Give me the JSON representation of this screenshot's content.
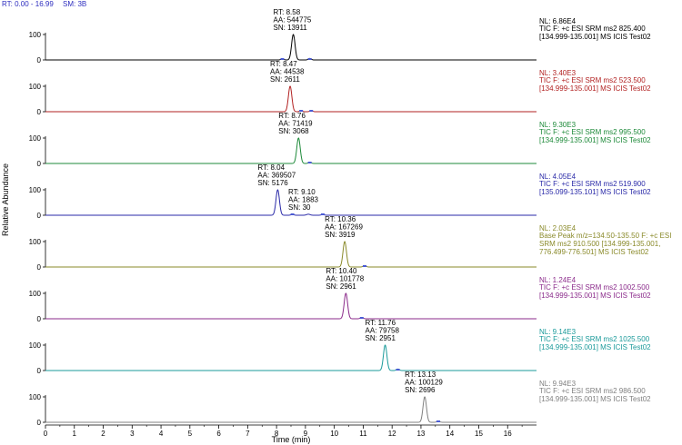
{
  "header": {
    "rt_range": "RT: 0.00 - 16.99",
    "sm": "SM: 3B"
  },
  "colors": {
    "axis": "#000000",
    "header": "#2d2dbf",
    "peak_marker": "#4a5bd4"
  },
  "chart_data": {
    "type": "line",
    "title": "",
    "xlabel": "Time (min)",
    "ylabel": "Relative Abundance",
    "xlim": [
      0,
      17
    ],
    "x_ticks": [
      0,
      1,
      2,
      3,
      4,
      5,
      6,
      7,
      8,
      9,
      10,
      11,
      12,
      13,
      14,
      15,
      16
    ],
    "x_tick_labels": [
      "0",
      "1",
      "2",
      "3",
      "4",
      "5",
      "6",
      "7",
      "8",
      "9",
      "10",
      "11",
      "12",
      "13",
      "14",
      "15",
      "16"
    ],
    "panel_y_ticks": [
      "0",
      "100"
    ],
    "panels": [
      {
        "color": "#000000",
        "nl": "NL: 6.86E4",
        "info": [
          "TIC F: +c ESI SRM ms2 825.400",
          "[134.999-135.001] MS ICIS Test02"
        ],
        "peaks": [
          {
            "rt": 8.58,
            "height": 100,
            "labels": [
              "RT: 8.58",
              "AA: 544775",
              "SN: 13911"
            ]
          }
        ],
        "minor": [
          {
            "rt": 8.2,
            "height": 4
          },
          {
            "rt": 9.15,
            "height": 6
          }
        ]
      },
      {
        "color": "#b22222",
        "nl": "NL: 3.40E3",
        "info": [
          "TIC F: +c ESI SRM ms2 523.500",
          "[134.999-135.001] MS ICIS Test02"
        ],
        "peaks": [
          {
            "rt": 8.47,
            "height": 100,
            "labels": [
              "RT: 8.47",
              "AA: 44538",
              "SN: 2611"
            ]
          }
        ],
        "minor": [
          {
            "rt": 8.85,
            "height": 5
          },
          {
            "rt": 9.2,
            "height": 4
          }
        ]
      },
      {
        "color": "#1e8a3a",
        "nl": "NL: 9.30E3",
        "info": [
          "TIC F: +c ESI SRM ms2 995.500",
          "[134.999-135.001] MS ICIS Test02"
        ],
        "peaks": [
          {
            "rt": 8.76,
            "height": 100,
            "labels": [
              "RT: 8.76",
              "AA: 71419",
              "SN: 3068"
            ]
          }
        ],
        "minor": [
          {
            "rt": 9.15,
            "height": 5
          }
        ]
      },
      {
        "color": "#2a2aa8",
        "nl": "NL: 4.05E4",
        "info": [
          "TIC F: +c ESI SRM ms2 519.900",
          "[135.099-135.101] MS ICIS Test02"
        ],
        "peaks": [
          {
            "rt": 8.04,
            "height": 100,
            "labels": [
              "RT: 8.04",
              "AA: 369507",
              "SN: 5176"
            ]
          },
          {
            "rt": 9.1,
            "height": 4,
            "labels": [
              "RT: 9.10",
              "AA: 1883",
              "SN: 30"
            ]
          }
        ],
        "minor": [
          {
            "rt": 8.55,
            "height": 3
          },
          {
            "rt": 9.6,
            "height": 3
          }
        ]
      },
      {
        "color": "#8a8a2a",
        "nl": "NL: 2.03E4",
        "info": [
          "Base Peak m/z=134.50-135.50 F: +c ESI",
          "SRM ms2 910.500 [134.999-135.001,",
          "776.499-776.501] MS ICIS Test02"
        ],
        "peaks": [
          {
            "rt": 10.36,
            "height": 100,
            "labels": [
              "RT: 10.36",
              "AA: 167269",
              "SN: 3919"
            ]
          }
        ],
        "minor": [
          {
            "rt": 11.05,
            "height": 6
          }
        ]
      },
      {
        "color": "#8b2b8b",
        "nl": "NL: 1.24E4",
        "info": [
          "TIC F: +c ESI SRM ms2 1002.500",
          "[134.999-135.001] MS ICIS Test02"
        ],
        "peaks": [
          {
            "rt": 10.4,
            "height": 100,
            "labels": [
              "RT: 10.40",
              "AA: 101778",
              "SN: 2961"
            ]
          }
        ],
        "minor": [
          {
            "rt": 10.95,
            "height": 5
          }
        ]
      },
      {
        "color": "#1a9a9a",
        "nl": "NL: 9.14E3",
        "info": [
          "TIC F: +c ESI SRM ms2 1025.500",
          "[134.999-135.001] MS ICIS Test02"
        ],
        "peaks": [
          {
            "rt": 11.76,
            "height": 100,
            "labels": [
              "RT: 11.76",
              "AA: 79758",
              "SN: 2951"
            ]
          }
        ],
        "minor": [
          {
            "rt": 12.2,
            "height": 6
          }
        ]
      },
      {
        "color": "#808080",
        "nl": "NL: 9.94E3",
        "info": [
          "TIC F: +c ESI SRM ms2 986.500",
          "[134.999-135.001] MS ICIS Test02"
        ],
        "peaks": [
          {
            "rt": 13.13,
            "height": 100,
            "labels": [
              "RT: 13.13",
              "AA: 100129",
              "SN: 2696"
            ]
          }
        ],
        "minor": [
          {
            "rt": 13.6,
            "height": 5
          }
        ]
      }
    ]
  }
}
